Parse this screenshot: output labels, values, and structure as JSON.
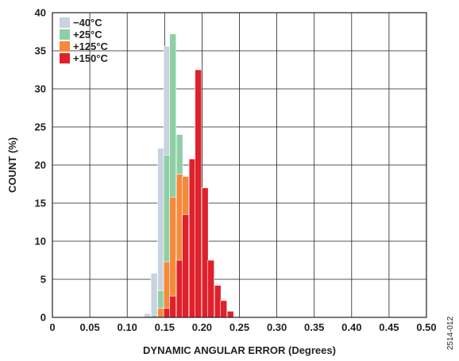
{
  "chart_data": {
    "type": "bar",
    "xlabel": "DYNAMIC ANGULAR ERROR (Degrees)",
    "ylabel": "COUNT (%)",
    "xlim": [
      0,
      0.5
    ],
    "ylim": [
      0,
      40
    ],
    "xticks": [
      "0",
      "0.05",
      "0.10",
      "0.15",
      "0.20",
      "0.25",
      "0.30",
      "0.35",
      "0.40",
      "0.45",
      "0.50"
    ],
    "yticks": [
      "0",
      "5",
      "10",
      "15",
      "20",
      "25",
      "30",
      "35",
      "40"
    ],
    "grid": true,
    "legend_position": "top-left",
    "bin_width": 0.0085,
    "series": [
      {
        "name": "−40°C",
        "color": "#c9d3df",
        "x": [
          0.127,
          0.136,
          0.145,
          0.153,
          0.161,
          0.17
        ],
        "values": [
          0.5,
          5.8,
          22.2,
          35.6,
          20.0,
          1.7
        ]
      },
      {
        "name": "+25°C",
        "color": "#8fcfa6",
        "x": [
          0.136,
          0.145,
          0.153,
          0.161,
          0.17,
          0.178,
          0.187,
          0.195
        ],
        "values": [
          0.3,
          3.5,
          21.3,
          37.2,
          24.0,
          8.0,
          1.5,
          0.3
        ]
      },
      {
        "name": "+125°C",
        "color": "#f58a3c",
        "x": [
          0.145,
          0.153,
          0.161,
          0.17,
          0.178,
          0.187,
          0.195,
          0.204
        ],
        "values": [
          1.2,
          7.3,
          15.8,
          18.8,
          18.5,
          8.0,
          3.5,
          0.5
        ]
      },
      {
        "name": "+150°C",
        "color": "#e0202a",
        "x": [
          0.153,
          0.161,
          0.17,
          0.178,
          0.187,
          0.195,
          0.204,
          0.212,
          0.221,
          0.229,
          0.238
        ],
        "values": [
          1.2,
          2.8,
          7.5,
          13.5,
          20.8,
          32.5,
          17.0,
          7.5,
          4.2,
          2.2,
          0.8
        ]
      }
    ]
  },
  "figure_code": "2514-012"
}
